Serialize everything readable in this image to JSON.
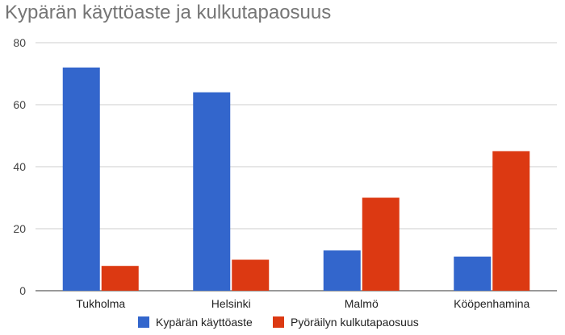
{
  "chart_data": {
    "type": "bar",
    "title": "Kypärän käyttöaste ja kulkutapaosuus",
    "categories": [
      "Tukholma",
      "Helsinki",
      "Malmö",
      "Kööpenhamina"
    ],
    "series": [
      {
        "name": "Kypärän käyttöaste",
        "color": "#3366cc",
        "values": [
          72,
          64,
          13,
          11
        ]
      },
      {
        "name": "Pyöräilyn kulkutapaosuus",
        "color": "#dc3912",
        "values": [
          8,
          10,
          30,
          45
        ]
      }
    ],
    "ylim": [
      0,
      80
    ],
    "yticks": [
      0,
      20,
      40,
      60,
      80
    ],
    "grid": true,
    "legend_position": "bottom"
  }
}
